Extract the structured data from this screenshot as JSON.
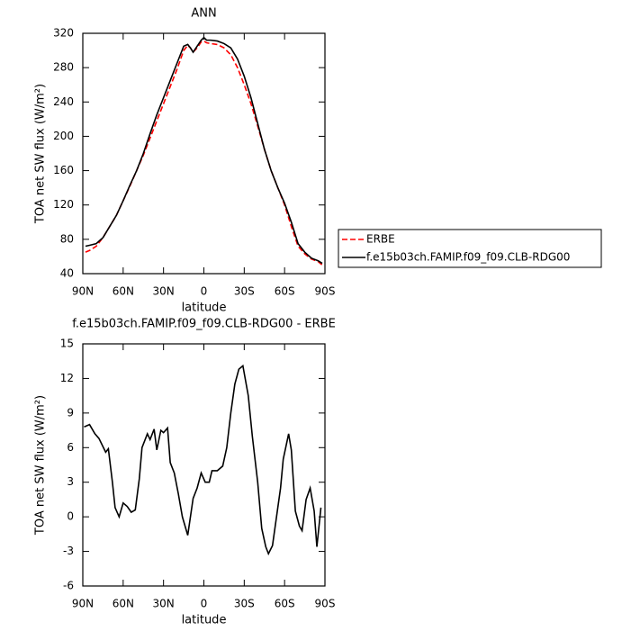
{
  "chart_data": [
    {
      "type": "line",
      "title": "ANN",
      "x_label": "latitude",
      "y_label": "TOA net SW flux (W/m²)",
      "x": [
        88,
        85,
        80,
        75,
        70,
        65,
        60,
        55,
        50,
        45,
        40,
        35,
        30,
        25,
        20,
        15,
        12,
        10,
        8,
        5,
        2,
        0,
        -2,
        -5,
        -10,
        -15,
        -20,
        -25,
        -30,
        -35,
        -40,
        -45,
        -50,
        -55,
        -60,
        -65,
        -70,
        -75,
        -80,
        -85,
        -88
      ],
      "series": [
        {
          "name": "ERBE",
          "color": "#ff0000",
          "line_style": "dashed",
          "values": [
            65,
            67,
            72,
            82,
            95,
            108,
            125,
            142,
            160,
            178,
            198,
            218,
            238,
            258,
            278,
            300,
            306,
            303,
            298,
            303,
            310,
            311,
            309,
            308,
            307,
            303,
            295,
            280,
            260,
            238,
            212,
            185,
            160,
            140,
            120,
            95,
            72,
            63,
            57,
            54,
            50
          ]
        },
        {
          "name": "f.e15b03ch.FAMIP.f09_f09.CLB-RDG00",
          "color": "#000000",
          "line_style": "solid",
          "values": [
            72,
            73,
            75,
            82,
            95,
            108,
            125,
            143,
            160,
            180,
            203,
            225,
            245,
            265,
            285,
            305,
            307,
            303,
            298,
            305,
            312,
            315,
            312,
            312,
            311,
            308,
            303,
            290,
            270,
            245,
            215,
            185,
            160,
            140,
            122,
            100,
            75,
            65,
            58,
            55,
            52
          ]
        }
      ],
      "xlim": [
        90,
        -90
      ],
      "xticks": [
        {
          "value": 90,
          "label": "90N"
        },
        {
          "value": 60,
          "label": "60N"
        },
        {
          "value": 30,
          "label": "30N"
        },
        0,
        {
          "value": -30,
          "label": "30S"
        },
        {
          "value": -60,
          "label": "60S"
        },
        {
          "value": -90,
          "label": "90S"
        }
      ],
      "ylim": [
        40,
        320
      ],
      "yticks": [
        40,
        80,
        120,
        160,
        200,
        240,
        280,
        320
      ],
      "legend": "right"
    },
    {
      "type": "line",
      "title": "f.e15b03ch.FAMIP.f09_f09.CLB-RDG00 - ERBE",
      "x_label": "latitude",
      "y_label": "TOA net SW flux (W/m²)",
      "x": [
        89,
        85,
        81,
        78,
        73,
        71,
        68,
        66,
        63,
        60,
        57,
        54,
        51,
        48,
        46,
        42,
        40,
        37,
        35,
        32,
        30,
        27,
        25,
        22,
        19,
        16,
        12,
        8,
        5,
        2,
        -1,
        -4,
        -6,
        -10,
        -14,
        -17,
        -20,
        -23,
        -26,
        -29,
        -33,
        -36,
        -40,
        -43,
        -46,
        -48,
        -51,
        -54,
        -57,
        -59,
        -63,
        -65,
        -68,
        -71,
        -73,
        -76,
        -79,
        -82,
        -84,
        -87
      ],
      "values": [
        7.8,
        8,
        7.2,
        6.8,
        5.6,
        5.9,
        3,
        0.8,
        0,
        1.2,
        0.9,
        0.4,
        0.6,
        3.3,
        6,
        7.2,
        6.7,
        7.6,
        5.8,
        7.5,
        7.3,
        7.7,
        4.7,
        3.8,
        2,
        0,
        -1.6,
        1.6,
        2.5,
        3.8,
        3,
        3,
        4,
        4,
        4.4,
        6,
        9,
        11.5,
        12.8,
        13.1,
        10.5,
        7,
        3,
        -1,
        -2.6,
        -3.2,
        -2.5,
        0,
        2.5,
        5,
        7.2,
        5.8,
        0.5,
        -0.8,
        -1.2,
        1.5,
        2.5,
        0.5,
        -2.6,
        0.8
      ],
      "color": "#000000",
      "xlim": [
        90,
        -90
      ],
      "xticks": [
        {
          "value": 90,
          "label": "90N"
        },
        {
          "value": 60,
          "label": "60N"
        },
        {
          "value": 30,
          "label": "30N"
        },
        0,
        {
          "value": -30,
          "label": "30S"
        },
        {
          "value": -60,
          "label": "60S"
        },
        {
          "value": -90,
          "label": "90S"
        }
      ],
      "ylim": [
        -6,
        15
      ],
      "yticks": [
        -6,
        -3,
        0,
        3,
        6,
        9,
        12,
        15
      ]
    }
  ]
}
